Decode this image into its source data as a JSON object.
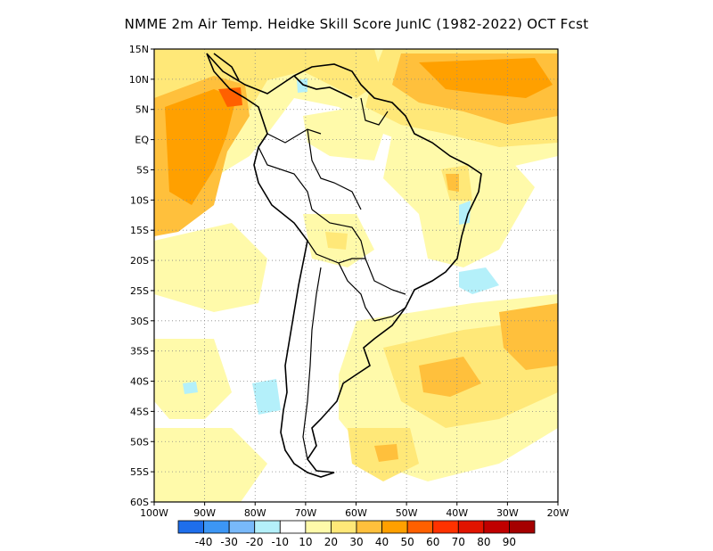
{
  "title": "NMME  2m Air Temp. Heidke Skill Score JunIC (1982-2022) OCT Fcst",
  "map": {
    "extent": {
      "lon": [
        -100,
        -20
      ],
      "lat": [
        -60,
        15
      ]
    },
    "lat_ticks": [
      "15N",
      "10N",
      "5N",
      "EQ",
      "5S",
      "10S",
      "15S",
      "20S",
      "25S",
      "30S",
      "35S",
      "40S",
      "45S",
      "50S",
      "55S",
      "60S"
    ],
    "lon_ticks": [
      "100W",
      "90W",
      "80W",
      "70W",
      "60W",
      "50W",
      "40W",
      "30W",
      "20W"
    ],
    "grid": "dotted"
  },
  "colorbar": {
    "colors": [
      "#1e6eeb",
      "#3c96f5",
      "#78b9fa",
      "#b4f0fa",
      "#ffffff",
      "#fffaaa",
      "#ffe878",
      "#ffc03c",
      "#ffa000",
      "#ff6000",
      "#ff3200",
      "#e11400",
      "#c00000",
      "#a50000"
    ],
    "labels": [
      "-40",
      "-30",
      "-20",
      "-10",
      "10",
      "20",
      "30",
      "40",
      "50",
      "60",
      "70",
      "80",
      "90"
    ]
  }
}
